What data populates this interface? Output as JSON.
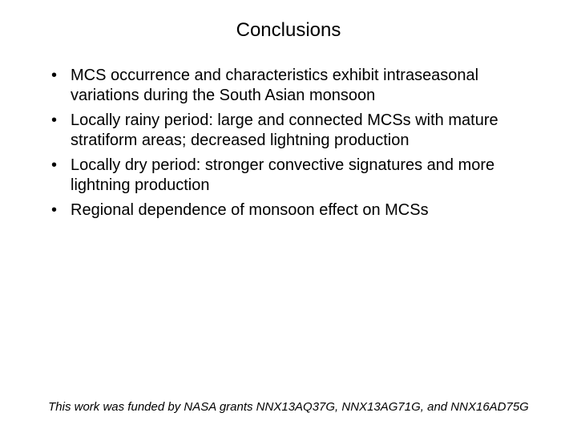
{
  "title": "Conclusions",
  "bullets": [
    "MCS occurrence and characteristics exhibit intraseasonal variations during the South Asian monsoon",
    "Locally rainy period: large and connected MCSs with mature stratiform areas; decreased lightning production",
    "Locally dry period: stronger convective signatures and more lightning production",
    "Regional dependence of monsoon effect on MCSs"
  ],
  "footer": "This work was funded by NASA grants NNX13AQ37G, NNX13AG71G, and NNX16AD75G",
  "colors": {
    "background": "#ffffff",
    "text": "#000000"
  },
  "fontsize": {
    "title_pt": 24,
    "body_pt": 20,
    "footer_pt": 15
  }
}
